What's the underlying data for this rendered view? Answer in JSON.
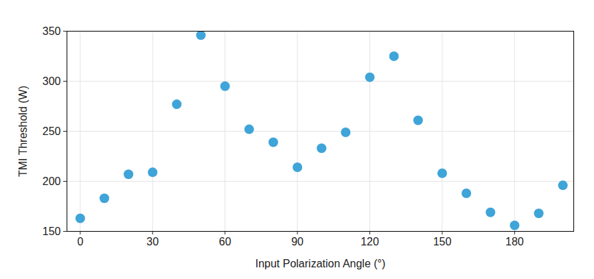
{
  "chart_data": {
    "type": "scatter",
    "x_label": "Input Polarization Angle (°)",
    "y_label": "TMI Threshold (W)",
    "x": [
      0,
      10,
      20,
      30,
      40,
      50,
      60,
      70,
      80,
      90,
      100,
      110,
      120,
      130,
      140,
      150,
      160,
      170,
      180,
      190,
      200
    ],
    "values": [
      163,
      183,
      207,
      209,
      277,
      346,
      295,
      252,
      239,
      214,
      233,
      249,
      304,
      325,
      261,
      208,
      188,
      169,
      156,
      168,
      196
    ],
    "color": "#3fa4d8",
    "marker": "circle",
    "xlim": [
      -5.5,
      204.5
    ],
    "xticks": [
      0,
      30,
      60,
      90,
      120,
      150,
      180
    ],
    "ylim": [
      150,
      350
    ],
    "yticks": [
      150,
      200,
      250,
      300,
      350
    ],
    "grid": true
  }
}
